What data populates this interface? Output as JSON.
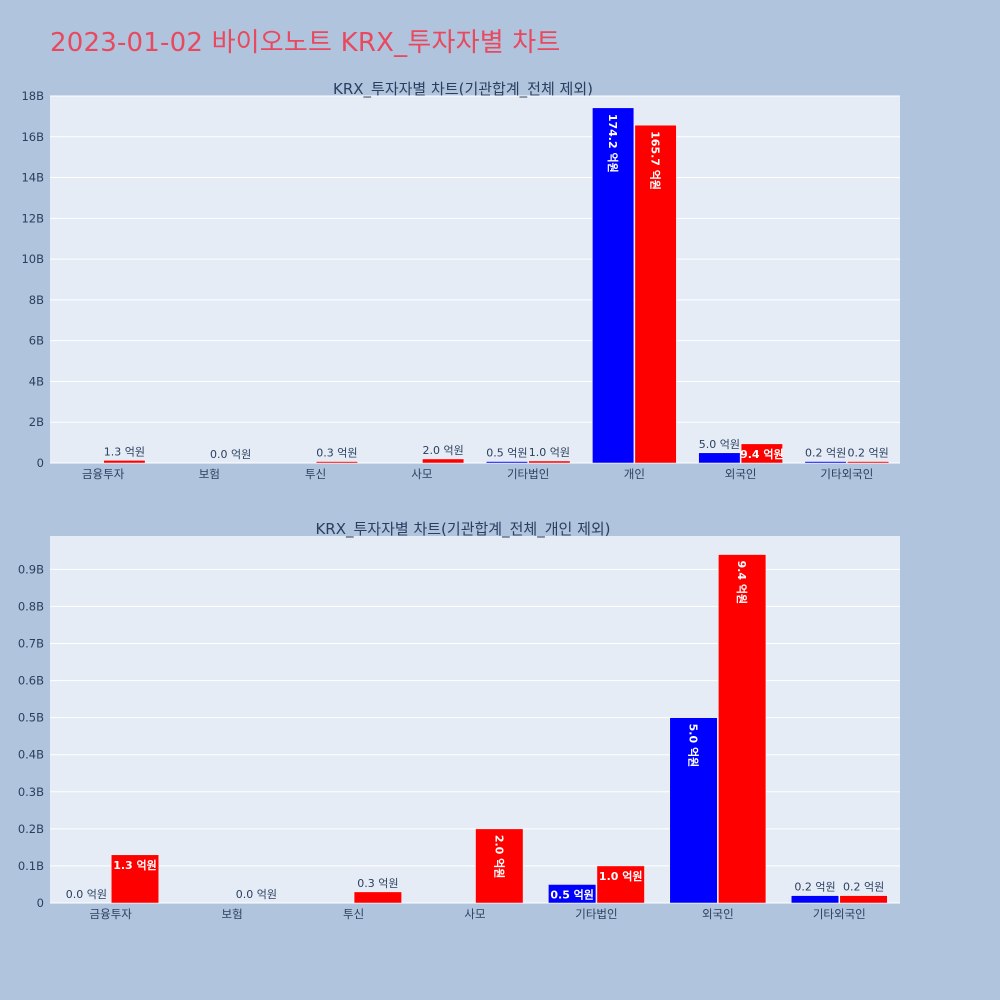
{
  "page": {
    "title": "2023-01-02 바이오노트 KRX_투자자별 차트"
  },
  "colors": {
    "background": "#b0c4de",
    "plot_bg": "#e5ecf6",
    "title": "#e8495f",
    "series_a": "#0000ff",
    "series_b": "#ff0000",
    "text": "#2a3f5f"
  },
  "chart_data": [
    {
      "type": "bar",
      "title": "KRX_투자자별 차트(기관합계_전체 제외)",
      "categories": [
        "금융투자",
        "보험",
        "투신",
        "사모",
        "기타법인",
        "개인",
        "외국인",
        "기타외국인"
      ],
      "series": [
        {
          "color": "#0000ff",
          "values": [
            null,
            null,
            null,
            null,
            0.05,
            17.42,
            0.5,
            0.02
          ],
          "labels": [
            "",
            "",
            "",
            "",
            "0.5 억원",
            "174.2 억원",
            "5.0 억원",
            "0.2 억원"
          ]
        },
        {
          "color": "#ff0000",
          "values": [
            0.13,
            0.0,
            0.03,
            0.2,
            0.1,
            16.57,
            0.94,
            0.02
          ],
          "labels": [
            "1.3 억원",
            "0.0 억원",
            "0.3 억원",
            "2.0 억원",
            "1.0 억원",
            "165.7 억원",
            "9.4 억원",
            "0.2 억원"
          ]
        }
      ],
      "ylim": [
        0,
        18
      ],
      "yticks": [
        0,
        2,
        4,
        6,
        8,
        10,
        12,
        14,
        16,
        18
      ],
      "ytick_labels": [
        "0",
        "2B",
        "4B",
        "6B",
        "8B",
        "10B",
        "12B",
        "14B",
        "16B",
        "18B"
      ],
      "grid": true
    },
    {
      "type": "bar",
      "title": "KRX_투자자별 차트(기관합계_전체_개인 제외)",
      "categories": [
        "금융투자",
        "보험",
        "투신",
        "사모",
        "기타법인",
        "외국인",
        "기타외국인"
      ],
      "series": [
        {
          "color": "#0000ff",
          "values": [
            0.0,
            null,
            null,
            null,
            0.05,
            0.5,
            0.02
          ],
          "labels": [
            "0.0 억원",
            "",
            "",
            "",
            "0.5 억원",
            "5.0 억원",
            "0.2 억원"
          ]
        },
        {
          "color": "#ff0000",
          "values": [
            0.13,
            0.0,
            0.03,
            0.2,
            0.1,
            0.94,
            0.02
          ],
          "labels": [
            "1.3 억원",
            "0.0 억원",
            "0.3 억원",
            "2.0 억원",
            "1.0 억원",
            "9.4 억원",
            "0.2 억원"
          ]
        }
      ],
      "ylim": [
        0,
        0.99
      ],
      "yticks": [
        0,
        0.1,
        0.2,
        0.3,
        0.4,
        0.5,
        0.6,
        0.7,
        0.8,
        0.9
      ],
      "ytick_labels": [
        "0",
        "0.1B",
        "0.2B",
        "0.3B",
        "0.4B",
        "0.5B",
        "0.6B",
        "0.7B",
        "0.8B",
        "0.9B"
      ],
      "grid": true
    }
  ]
}
